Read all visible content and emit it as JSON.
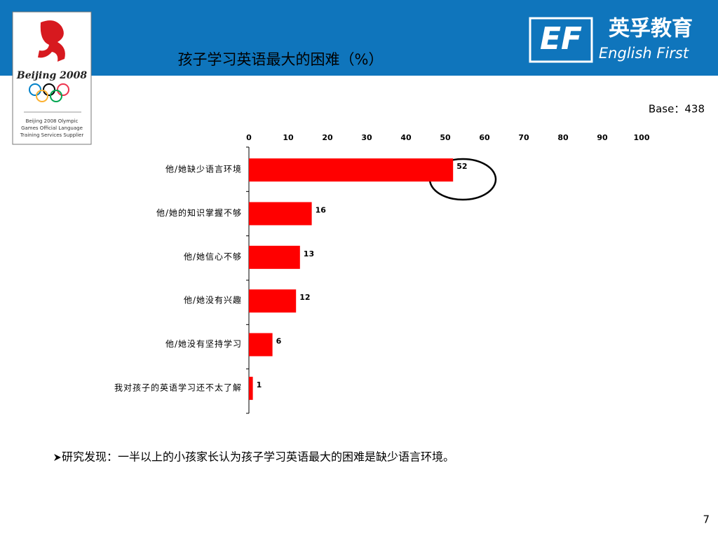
{
  "header": {
    "olympic_logo": {
      "wordmark": "Beijing 2008",
      "caption": [
        "Beijing 2008 Olympic",
        "Games Official Language",
        "Training Services Supplier"
      ]
    },
    "ef_logo": {
      "mark": "EF",
      "chinese_name": "英孚教育",
      "english_name": "English First"
    }
  },
  "base": "Base：438",
  "chart_data": {
    "type": "bar",
    "orientation": "horizontal",
    "title": "孩子学习英语最大的困难（%）",
    "categories": [
      "他/她缺少语言环境",
      "他/她的知识掌握不够",
      "他/她信心不够",
      "他/她没有兴趣",
      "他/她没有坚持学习",
      "我对孩子的英语学习还不太了解"
    ],
    "values": [
      52,
      16,
      13,
      12,
      6,
      1
    ],
    "color": "#ff0000",
    "xlim": [
      0,
      100
    ],
    "xticks": [
      0,
      10,
      20,
      30,
      40,
      50,
      60,
      70,
      80,
      90,
      100
    ]
  },
  "finding": "研究发现：一半以上的小孩家长认为孩子学习英语最大的困难是缺少语言环境。",
  "page_number": 7
}
